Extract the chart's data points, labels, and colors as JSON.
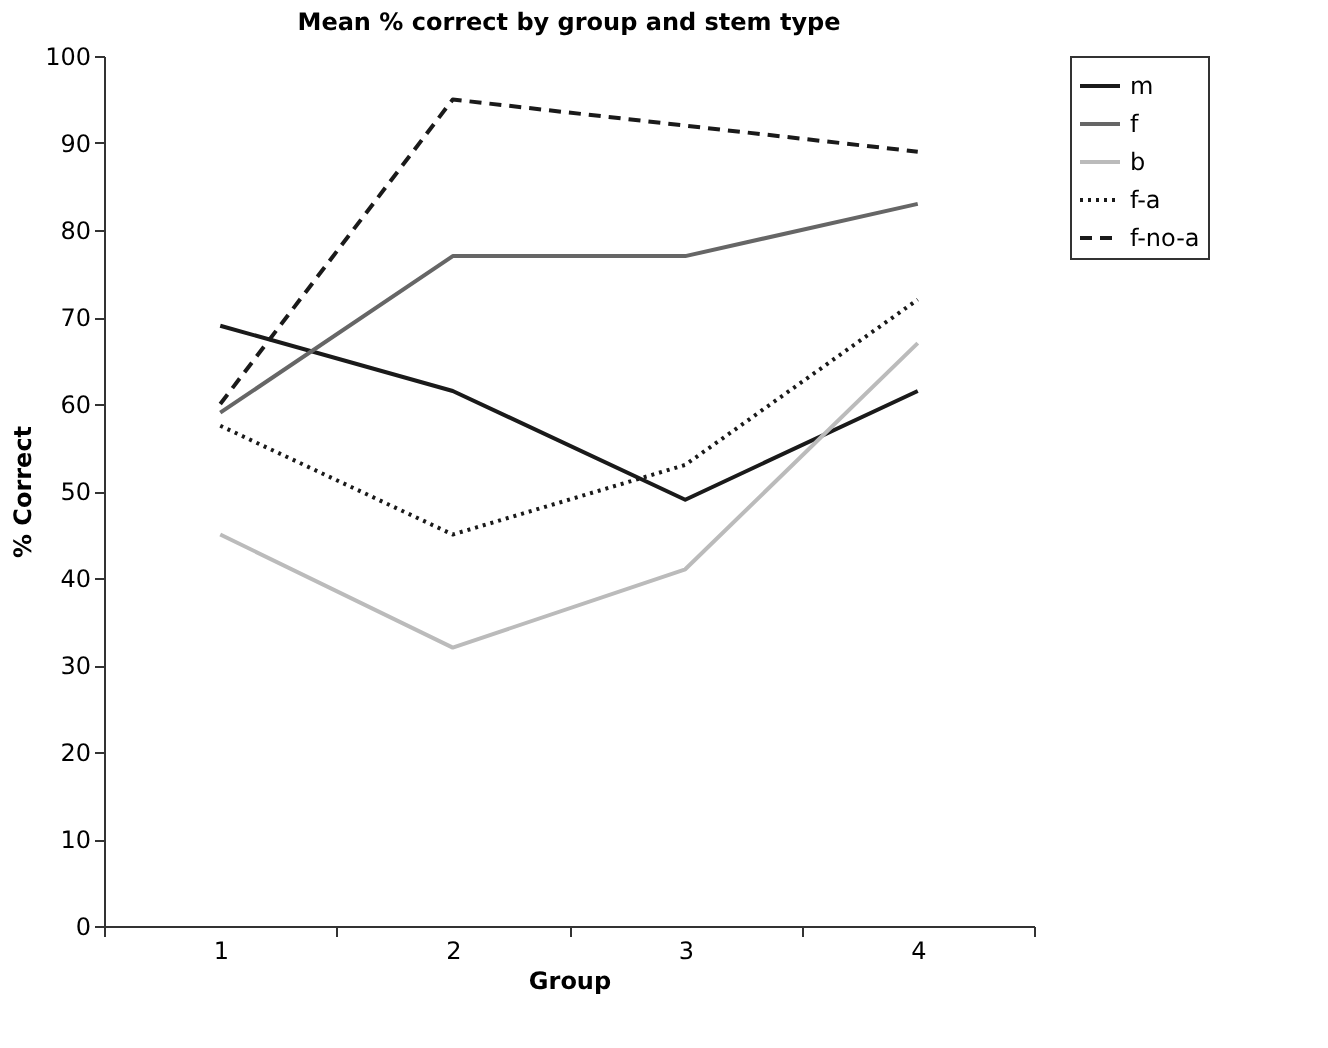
{
  "chart_data": {
    "type": "line",
    "title": "Mean % correct by group and stem type",
    "xlabel": "Group",
    "ylabel": "% Correct",
    "categories": [
      "1",
      "2",
      "3",
      "4"
    ],
    "series": [
      {
        "name": "m",
        "color": "#1a1a1a",
        "line_style": "solid",
        "values": [
          69,
          61.5,
          49,
          61.5
        ]
      },
      {
        "name": "f",
        "color": "#666666",
        "line_style": "solid",
        "values": [
          59,
          77,
          77,
          83
        ]
      },
      {
        "name": "b",
        "color": "#bbbbbb",
        "line_style": "solid",
        "values": [
          45,
          32,
          41,
          67
        ]
      },
      {
        "name": "f-a",
        "color": "#1a1a1a",
        "line_style": "dotted",
        "values": [
          57.5,
          45,
          53,
          72
        ]
      },
      {
        "name": "f-no-a",
        "color": "#1a1a1a",
        "line_style": "dashed",
        "values": [
          60,
          95,
          92,
          89
        ]
      }
    ],
    "ylim": [
      0,
      100
    ],
    "yticks": [
      0,
      10,
      20,
      30,
      40,
      50,
      60,
      70,
      80,
      90,
      100
    ],
    "grid": false,
    "legend": "right",
    "marker": "none"
  }
}
